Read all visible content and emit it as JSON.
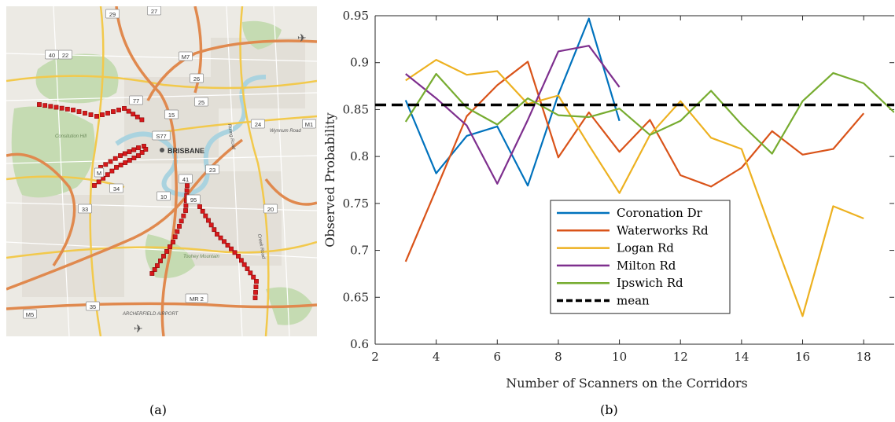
{
  "captions": {
    "a": "(a)",
    "b": "(b)"
  },
  "map": {
    "city_label": "BRISBANE",
    "place_labels": [
      "Consitution Hill",
      "Toohey Mountain",
      "ARCHERFIELD AIRPORT",
      "Wynnum Road",
      "Creek Road",
      "Ruling Road"
    ],
    "shields": [
      "29",
      "27",
      "40",
      "22",
      "M7",
      "26",
      "77",
      "25",
      "15",
      "S77",
      "24",
      "M1",
      "10",
      "23",
      "34",
      "33",
      "41",
      "95",
      "20",
      "35",
      "M5",
      "MR 2",
      "M"
    ],
    "corridor_color": "#d7191c"
  },
  "chart_data": {
    "type": "line",
    "xlabel": "Number of Scanners on the Corridors",
    "ylabel": "Observed Probability",
    "xlim": [
      2,
      19
    ],
    "ylim": [
      0.6,
      0.95
    ],
    "xticks": [
      2,
      4,
      6,
      8,
      10,
      12,
      14,
      16,
      18
    ],
    "yticks": [
      0.6,
      0.65,
      0.7,
      0.75,
      0.8,
      0.85,
      0.9,
      0.95
    ],
    "grid": false,
    "legend_position": "lower-center",
    "mean": {
      "name": "mean",
      "value": 0.855,
      "color": "#000000"
    },
    "series": [
      {
        "name": "Coronation Dr",
        "color": "#0072bd",
        "x": [
          3,
          4,
          5,
          6,
          7,
          8,
          9,
          10
        ],
        "y": [
          0.86,
          0.782,
          0.822,
          0.832,
          0.769,
          0.866,
          0.947,
          0.838
        ]
      },
      {
        "name": "Waterworks Rd",
        "color": "#d95319",
        "x": [
          3,
          4,
          5,
          6,
          7,
          8,
          9,
          10,
          11,
          12,
          13,
          14,
          15,
          16,
          17,
          18
        ],
        "y": [
          0.688,
          0.765,
          0.843,
          0.876,
          0.901,
          0.799,
          0.847,
          0.805,
          0.839,
          0.78,
          0.768,
          0.788,
          0.827,
          0.802,
          0.808,
          0.846
        ]
      },
      {
        "name": "Logan Rd",
        "color": "#edb120",
        "x": [
          3,
          4,
          5,
          6,
          7,
          8,
          9,
          10,
          11,
          12,
          13,
          14,
          15,
          16,
          17,
          18
        ],
        "y": [
          0.881,
          0.903,
          0.887,
          0.891,
          0.856,
          0.865,
          0.812,
          0.761,
          0.823,
          0.859,
          0.82,
          0.808,
          0.718,
          0.63,
          0.747,
          0.734
        ]
      },
      {
        "name": "Milton Rd",
        "color": "#7e2f8e",
        "x": [
          3,
          4,
          5,
          6,
          7,
          8,
          9,
          10
        ],
        "y": [
          0.888,
          0.862,
          0.833,
          0.771,
          0.839,
          0.912,
          0.918,
          0.874
        ]
      },
      {
        "name": "Ipswich Rd",
        "color": "#77ac30",
        "x": [
          3,
          4,
          5,
          6,
          7,
          8,
          9,
          10,
          11,
          12,
          13,
          14,
          15,
          16,
          17,
          18,
          19
        ],
        "y": [
          0.837,
          0.888,
          0.852,
          0.834,
          0.862,
          0.844,
          0.842,
          0.851,
          0.823,
          0.838,
          0.87,
          0.834,
          0.803,
          0.859,
          0.889,
          0.878,
          0.847
        ]
      }
    ]
  }
}
